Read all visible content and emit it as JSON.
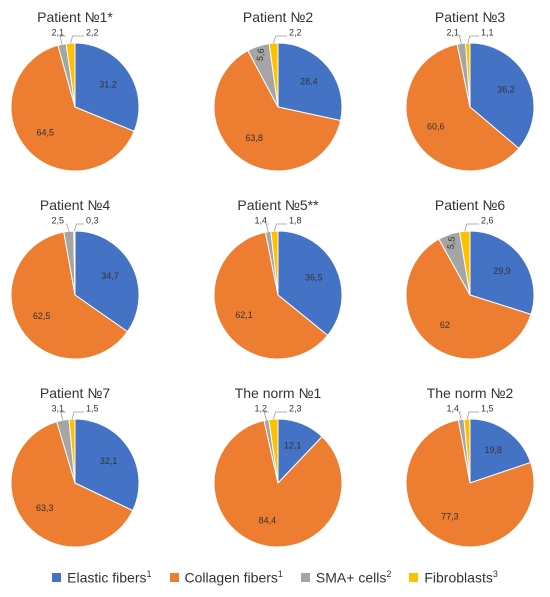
{
  "chart_data": [
    {
      "type": "pie",
      "title": "Patient №1*",
      "values": [
        31.2,
        64.5,
        2.1,
        2.2
      ],
      "labels": [
        "31,2",
        "64,5",
        "2,1",
        "2,2"
      ]
    },
    {
      "type": "pie",
      "title": "Patient №2",
      "values": [
        28.4,
        63.8,
        5.6,
        2.2
      ],
      "labels": [
        "28,4",
        "63,8",
        "5,6",
        "2,2"
      ]
    },
    {
      "type": "pie",
      "title": "Patient №3",
      "values": [
        36.2,
        60.6,
        2.1,
        1.1
      ],
      "labels": [
        "36,2",
        "60,6",
        "2,1",
        "1,1"
      ]
    },
    {
      "type": "pie",
      "title": "Patient №4",
      "values": [
        34.7,
        62.5,
        2.5,
        0.3
      ],
      "labels": [
        "34,7",
        "62,5",
        "2,5",
        "0,3"
      ]
    },
    {
      "type": "pie",
      "title": "Patient №5**",
      "values": [
        36.5,
        62.1,
        1.4,
        1.8
      ],
      "labels": [
        "36,5",
        "62,1",
        "1,4",
        "1,8"
      ]
    },
    {
      "type": "pie",
      "title": "Patient №6",
      "values": [
        29.9,
        62,
        5.5,
        2.6
      ],
      "labels": [
        "29,9",
        "62",
        "5,5",
        "2,6"
      ]
    },
    {
      "type": "pie",
      "title": "Patient №7",
      "values": [
        32.1,
        63.3,
        3.1,
        1.5
      ],
      "labels": [
        "32,1",
        "63,3",
        "3,1",
        "1,5"
      ]
    },
    {
      "type": "pie",
      "title": "The norm №1",
      "values": [
        12.1,
        84.4,
        1.2,
        2.3
      ],
      "labels": [
        "12,1",
        "84,4",
        "1,2",
        "2,3"
      ]
    },
    {
      "type": "pie",
      "title": "The norm №2",
      "values": [
        19.8,
        77.3,
        1.4,
        1.5
      ],
      "labels": [
        "19,8",
        "77,3",
        "1,4",
        "1,5"
      ]
    }
  ],
  "legend": [
    {
      "label": "Elastic fibers",
      "sup": "1",
      "color": "#4472C4"
    },
    {
      "label": "Collagen fibers",
      "sup": "1",
      "color": "#ED7D31"
    },
    {
      "label": "SMA+ cells",
      "sup": "2",
      "color": "#A5A5A5"
    },
    {
      "label": "Fibroblasts",
      "sup": "3",
      "color": "#FFC000"
    }
  ],
  "colors": [
    "#4472C4",
    "#ED7D31",
    "#A5A5A5",
    "#FFC000"
  ]
}
